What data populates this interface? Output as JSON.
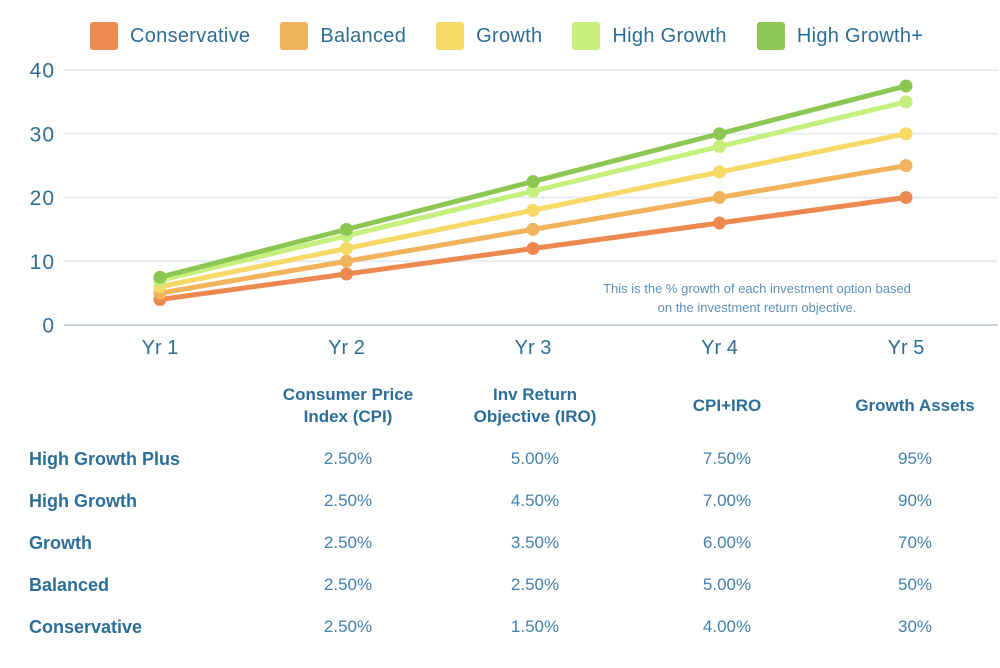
{
  "chart_data": {
    "type": "line",
    "categories": [
      "Yr 1",
      "Yr 2",
      "Yr 3",
      "Yr 4",
      "Yr 5"
    ],
    "series": [
      {
        "name": "Conservative",
        "color": "#EB8950",
        "values": [
          4,
          8,
          12,
          16,
          20
        ]
      },
      {
        "name": "Balanced",
        "color": "#F2B35D",
        "values": [
          5,
          10,
          15,
          20,
          25
        ]
      },
      {
        "name": "Growth",
        "color": "#F7D966",
        "values": [
          6,
          12,
          18,
          24,
          30
        ]
      },
      {
        "name": "High Growth",
        "color": "#C6EF7D",
        "values": [
          7,
          14,
          21,
          28,
          35
        ]
      },
      {
        "name": "High Growth+",
        "color": "#8CC653",
        "values": [
          7.5,
          15,
          22.5,
          30,
          37.5
        ]
      }
    ],
    "title": "",
    "xlabel": "",
    "ylabel": "",
    "ylim": [
      0,
      40
    ],
    "yticks": [
      0,
      10,
      20,
      30,
      40
    ],
    "grid": true,
    "legend_position": "top",
    "annotation": "This is the % growth of each investment option based\non the investment return objective.",
    "colors": {
      "axis_text": "#2E6E93",
      "gridline": "#E7EDF2",
      "zero_line": "#C9D4DD",
      "annotation_text": "#5E90B8"
    }
  },
  "table": {
    "headers": [
      "",
      "Consumer Price\nIndex (CPI)",
      "Inv Return\nObjective (IRO)",
      "CPI+IRO",
      "Growth Assets"
    ],
    "rows": [
      {
        "label": "High Growth Plus",
        "values": [
          "2.50%",
          "5.00%",
          "7.50%",
          "95%"
        ]
      },
      {
        "label": "High Growth",
        "values": [
          "2.50%",
          "4.50%",
          "7.00%",
          "90%"
        ]
      },
      {
        "label": "Growth",
        "values": [
          "2.50%",
          "3.50%",
          "6.00%",
          "70%"
        ]
      },
      {
        "label": "Balanced",
        "values": [
          "2.50%",
          "2.50%",
          "5.00%",
          "50%"
        ]
      },
      {
        "label": "Conservative",
        "values": [
          "2.50%",
          "1.50%",
          "4.00%",
          "30%"
        ]
      }
    ]
  }
}
